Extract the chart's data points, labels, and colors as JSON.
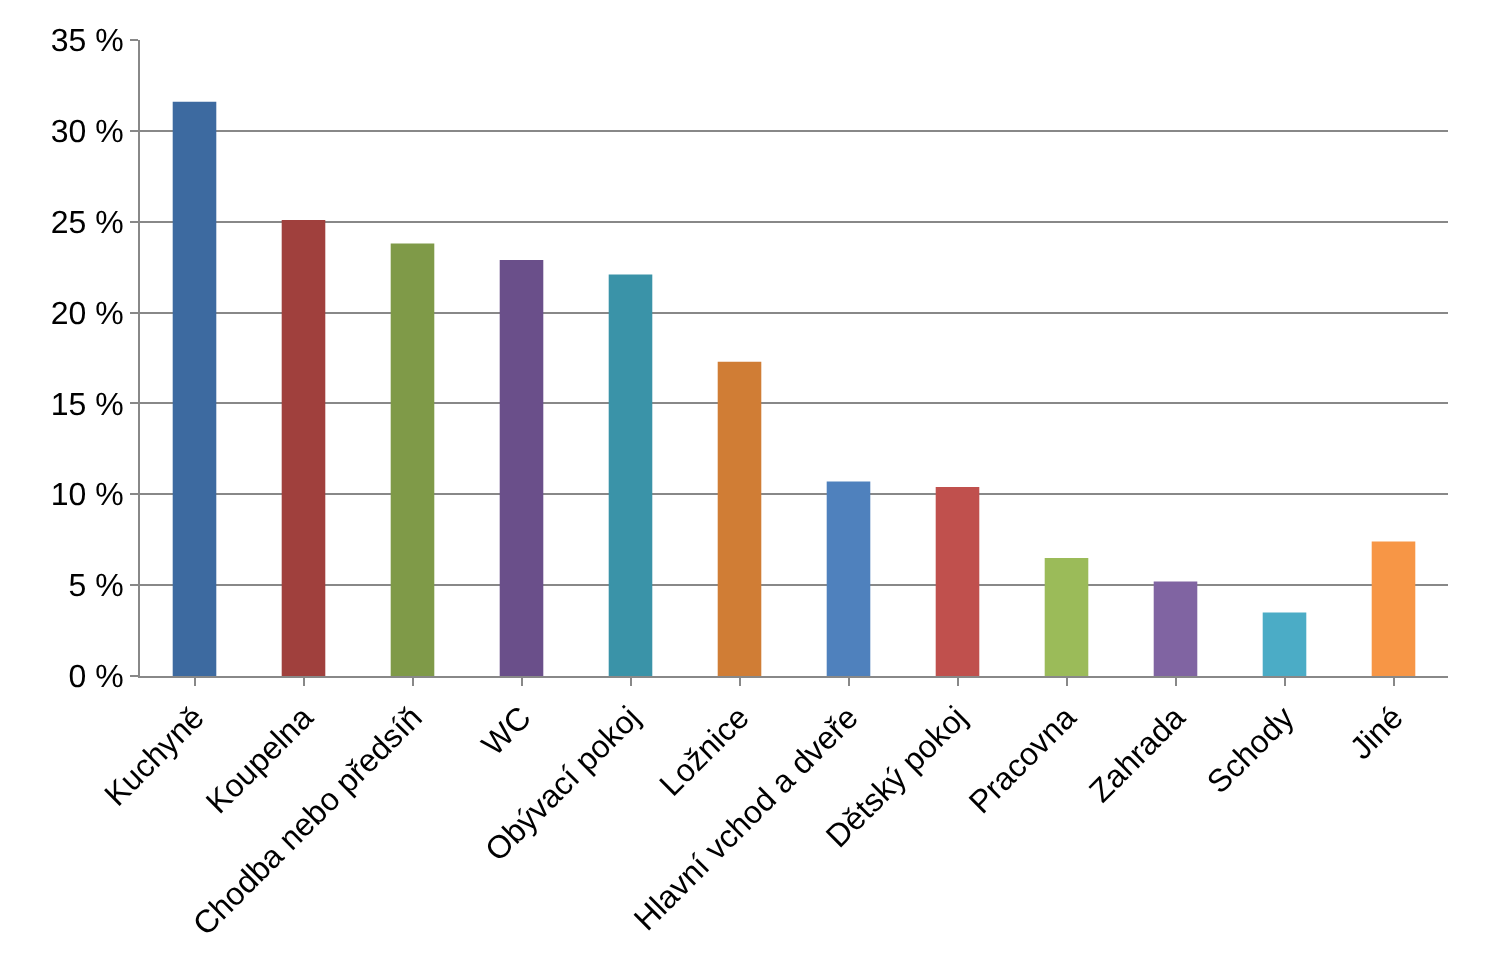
{
  "chart_data": {
    "type": "bar",
    "categories": [
      "Kuchyně",
      "Koupelna",
      "Chodba nebo předsíň",
      "WC",
      "Obývací pokoj",
      "Ložnice",
      "Hlavní vchod a dveře",
      "Dětský pokoj",
      "Pracovna",
      "Zahrada",
      "Schody",
      "Jiné"
    ],
    "values": [
      31.6,
      25.1,
      23.8,
      22.9,
      22.1,
      17.3,
      10.7,
      10.4,
      6.5,
      5.2,
      3.5,
      7.4
    ],
    "colors": [
      "#3d6aa0",
      "#a0403d",
      "#7f9a48",
      "#6a4f8a",
      "#3a93a8",
      "#d07d35",
      "#4f81bd",
      "#c0504d",
      "#9bbb59",
      "#8064a2",
      "#4bacc6",
      "#f79646"
    ],
    "ylim": [
      0,
      35
    ],
    "yticks": [
      {
        "value": 0,
        "label": "0 %"
      },
      {
        "value": 5,
        "label": "5 %"
      },
      {
        "value": 10,
        "label": "10 %"
      },
      {
        "value": 15,
        "label": "15 %"
      },
      {
        "value": 20,
        "label": "20 %"
      },
      {
        "value": 25,
        "label": "25 %"
      },
      {
        "value": 30,
        "label": "30 %"
      },
      {
        "value": 35,
        "label": "35 %"
      }
    ],
    "grid": "y"
  }
}
